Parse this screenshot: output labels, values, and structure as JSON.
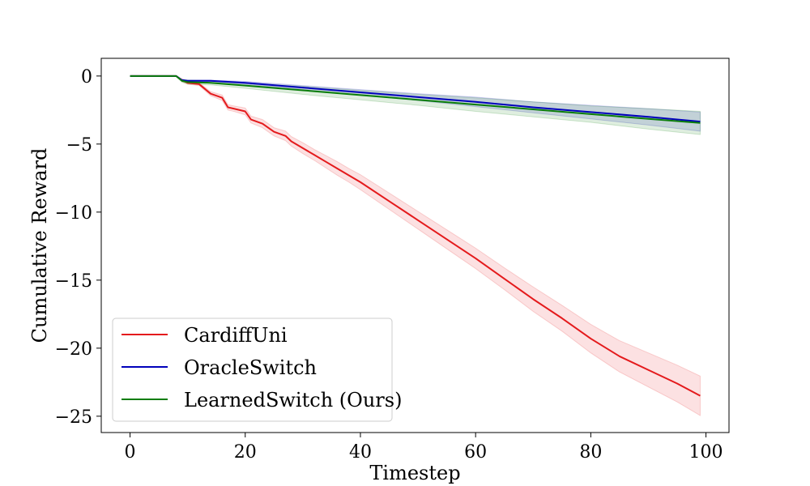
{
  "chart_data": {
    "type": "line",
    "xlabel": "Timestep",
    "ylabel": "Cumulative Reward",
    "xlim": [
      -5,
      104
    ],
    "ylim": [
      -26.2,
      1.3
    ],
    "xticks": [
      0,
      20,
      40,
      60,
      80,
      100
    ],
    "yticks": [
      0,
      -5,
      -10,
      -15,
      -20,
      -25
    ],
    "xtick_labels": [
      "0",
      "20",
      "40",
      "60",
      "80",
      "100"
    ],
    "ytick_labels": [
      "0",
      "−5",
      "−10",
      "−15",
      "−20",
      "−25"
    ],
    "grid": false,
    "legend_position": "lower-left",
    "series": [
      {
        "name": "CardiffUni",
        "color": "#e41a1c",
        "x": [
          0,
          8,
          9,
          10,
          12,
          14,
          16,
          17,
          18,
          20,
          21,
          23,
          25,
          27,
          28,
          30,
          32,
          34,
          36,
          38,
          40,
          45,
          50,
          55,
          60,
          65,
          70,
          75,
          80,
          85,
          90,
          95,
          99
        ],
        "y": [
          0,
          0,
          -0.3,
          -0.5,
          -0.6,
          -1.3,
          -1.6,
          -2.3,
          -2.4,
          -2.6,
          -3.2,
          -3.5,
          -4.1,
          -4.4,
          -4.8,
          -5.3,
          -5.8,
          -6.3,
          -6.8,
          -7.3,
          -7.8,
          -9.2,
          -10.6,
          -12.0,
          -13.4,
          -14.9,
          -16.4,
          -17.8,
          -19.3,
          -20.6,
          -21.6,
          -22.6,
          -23.5
        ],
        "band": [
          0,
          0,
          0.1,
          0.1,
          0.1,
          0.15,
          0.2,
          0.2,
          0.2,
          0.25,
          0.25,
          0.3,
          0.3,
          0.35,
          0.35,
          0.4,
          0.4,
          0.45,
          0.5,
          0.5,
          0.55,
          0.6,
          0.65,
          0.7,
          0.75,
          0.8,
          0.9,
          0.95,
          1.05,
          1.15,
          1.25,
          1.35,
          1.45
        ]
      },
      {
        "name": "OracleSwitch",
        "color": "#0000bb",
        "x": [
          0,
          8,
          9,
          10,
          14,
          20,
          30,
          40,
          50,
          60,
          70,
          80,
          90,
          99
        ],
        "y": [
          0,
          0,
          -0.3,
          -0.35,
          -0.35,
          -0.5,
          -0.85,
          -1.2,
          -1.55,
          -1.9,
          -2.3,
          -2.65,
          -3.0,
          -3.35
        ],
        "band": [
          0,
          0,
          0.05,
          0.05,
          0.05,
          0.1,
          0.15,
          0.2,
          0.25,
          0.35,
          0.4,
          0.5,
          0.6,
          0.7
        ]
      },
      {
        "name": "LearnedSwitch (Ours)",
        "color": "#0a7d0a",
        "x": [
          0,
          8,
          9,
          10,
          14,
          20,
          30,
          40,
          50,
          60,
          70,
          80,
          90,
          99
        ],
        "y": [
          0,
          0,
          -0.35,
          -0.45,
          -0.5,
          -0.7,
          -1.05,
          -1.4,
          -1.75,
          -2.1,
          -2.45,
          -2.8,
          -3.15,
          -3.45
        ],
        "band": [
          0,
          0,
          0.1,
          0.15,
          0.15,
          0.2,
          0.3,
          0.35,
          0.4,
          0.5,
          0.55,
          0.6,
          0.75,
          0.85
        ]
      }
    ]
  }
}
